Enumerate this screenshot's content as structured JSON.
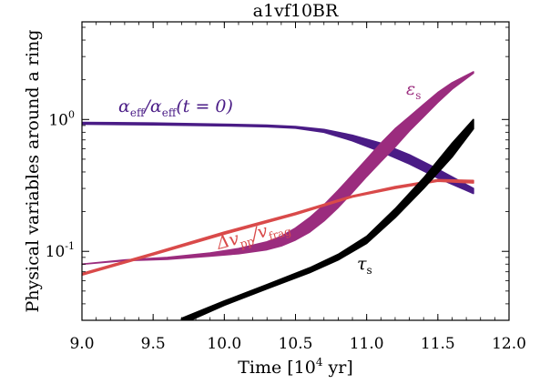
{
  "chart_data": {
    "type": "line",
    "title": "a1vf10BR",
    "xlabel": "Time [10",
    "xlabel_exp": "4",
    "xlabel_tail": " yr]",
    "ylabel": "Physical variables around a ring",
    "xlim": [
      9.0,
      12.0
    ],
    "ylim": [
      0.03,
      5.5
    ],
    "yscale": "log",
    "grid": false,
    "x_ticks": [
      9.0,
      9.5,
      10.0,
      10.5,
      11.0,
      11.5,
      12.0
    ],
    "x_tick_labels": [
      "9.0",
      "9.5",
      "10.0",
      "10.5",
      "11.0",
      "11.5",
      "12.0"
    ],
    "y_ticks": [
      0.1,
      1.0
    ],
    "y_tick_labels": [
      {
        "base": "10",
        "exp": "-1"
      },
      {
        "base": "10",
        "exp": "0"
      }
    ],
    "annotations": {
      "alpha": {
        "main": "α",
        "sub1": "eff",
        "mid": "/α",
        "sub2": "eff",
        "tail": "(t = 0)"
      },
      "eps": {
        "main": "ε",
        "sub": "s"
      },
      "dv": {
        "main": "Δv",
        "sub1": "pp",
        "mid": "/v",
        "sub2": "frag"
      },
      "tau": {
        "main": "τ",
        "sub": "s"
      }
    },
    "series": [
      {
        "key": "alpha",
        "color": "#4a1c86",
        "x": [
          9.0,
          9.5,
          10.0,
          10.3,
          10.5,
          10.7,
          10.9,
          11.1,
          11.3,
          11.5,
          11.75
        ],
        "y_lo": [
          0.92,
          0.91,
          0.895,
          0.88,
          0.86,
          0.8,
          0.69,
          0.57,
          0.46,
          0.36,
          0.275
        ],
        "y_hi": [
          0.95,
          0.94,
          0.92,
          0.905,
          0.885,
          0.84,
          0.76,
          0.66,
          0.54,
          0.42,
          0.3
        ]
      },
      {
        "key": "eps",
        "color": "#9b2c7e",
        "x": [
          9.0,
          9.3,
          9.6,
          9.9,
          10.1,
          10.3,
          10.4,
          10.5,
          10.6,
          10.7,
          10.8,
          10.9,
          11.0,
          11.1,
          11.2,
          11.3,
          11.4,
          11.5,
          11.6,
          11.75
        ],
        "y_lo": [
          0.08,
          0.085,
          0.087,
          0.092,
          0.096,
          0.103,
          0.11,
          0.122,
          0.14,
          0.17,
          0.215,
          0.28,
          0.37,
          0.48,
          0.62,
          0.82,
          1.05,
          1.35,
          1.7,
          2.25
        ],
        "y_hi": [
          0.08,
          0.086,
          0.09,
          0.097,
          0.105,
          0.118,
          0.13,
          0.15,
          0.18,
          0.225,
          0.29,
          0.38,
          0.5,
          0.66,
          0.85,
          1.05,
          1.3,
          1.6,
          1.9,
          2.3
        ]
      },
      {
        "key": "dv",
        "color": "#d94a4a",
        "x": [
          9.0,
          9.5,
          10.0,
          10.5,
          10.9,
          11.2,
          11.5,
          11.75
        ],
        "y_lo": [
          0.066,
          0.094,
          0.135,
          0.19,
          0.258,
          0.3,
          0.34,
          0.33
        ],
        "y_hi": [
          0.068,
          0.097,
          0.14,
          0.196,
          0.264,
          0.31,
          0.35,
          0.345
        ]
      },
      {
        "key": "tau",
        "color": "#000000",
        "x": [
          9.7,
          10.0,
          10.3,
          10.6,
          10.8,
          11.0,
          11.2,
          11.4,
          11.6,
          11.75
        ],
        "y_lo": [
          0.028,
          0.039,
          0.052,
          0.069,
          0.086,
          0.115,
          0.18,
          0.3,
          0.52,
          0.85
        ],
        "y_hi": [
          0.031,
          0.042,
          0.056,
          0.075,
          0.095,
          0.13,
          0.21,
          0.36,
          0.66,
          1.0
        ]
      }
    ]
  }
}
